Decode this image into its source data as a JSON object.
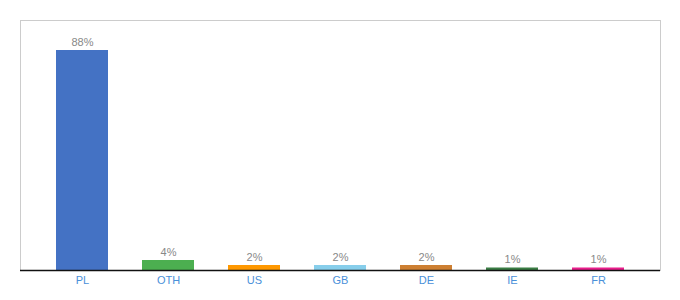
{
  "chart_data": {
    "type": "bar",
    "categories": [
      "PL",
      "OTH",
      "US",
      "GB",
      "DE",
      "IE",
      "FR"
    ],
    "values": [
      88,
      4,
      2,
      2,
      2,
      1,
      1
    ],
    "value_labels": [
      "88%",
      "4%",
      "2%",
      "2%",
      "2%",
      "1%",
      "1%"
    ],
    "colors": [
      "#4472c4",
      "#4caf50",
      "#ff9800",
      "#87ceeb",
      "#cd7f32",
      "#3a7d44",
      "#e91e8c"
    ],
    "ylim": [
      0,
      100
    ],
    "data_labels": true,
    "tick_labels": "x",
    "grid": false
  }
}
